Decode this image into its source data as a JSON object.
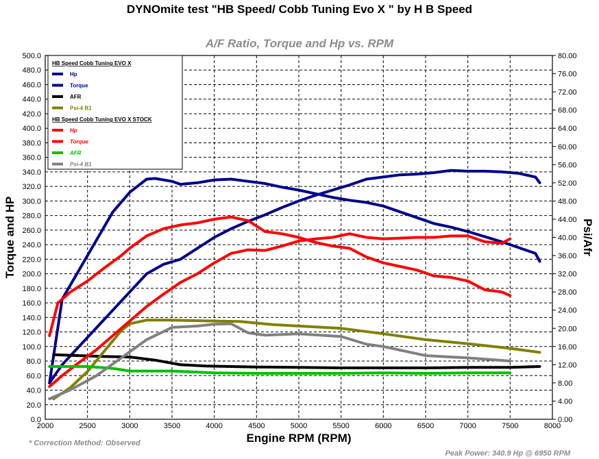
{
  "header": {
    "title": "DYNOmite test \"HB Speed/ Cobb Tuning Evo X \" by H B Speed",
    "subtitle": "A/F Ratio, Torque and Hp vs. RPM"
  },
  "footer": {
    "correction": "* Correction Method: Observed",
    "peak": "Peak Power: 340.9 Hp @ 6950 RPM"
  },
  "chart_data": {
    "type": "line",
    "title": "A/F Ratio, Torque and Hp vs. RPM",
    "xlabel": "Engine RPM (RPM)",
    "ylabel": "Torque and HP",
    "y2label": "Psi/Afr",
    "xlim": [
      2000,
      8000
    ],
    "ylim": [
      0,
      500
    ],
    "y2lim": [
      0,
      80
    ],
    "grid": true,
    "legend_position": "top-left",
    "x_ticks": [
      "2000",
      "2500",
      "3000",
      "3500",
      "4000",
      "4500",
      "5000",
      "5500",
      "6000",
      "6500",
      "7000",
      "7500",
      "8000"
    ],
    "y_ticks": [
      "0.0",
      "20.0",
      "40.0",
      "60.0",
      "80.0",
      "100.0",
      "120.0",
      "140.0",
      "160.0",
      "180.0",
      "200.0",
      "220.0",
      "240.0",
      "260.0",
      "280.0",
      "300.0",
      "320.0",
      "340.0",
      "360.0",
      "380.0",
      "400.0",
      "420.0",
      "440.0",
      "460.0",
      "480.0",
      "500.0"
    ],
    "y2_ticks": [
      "0.00",
      "4.00",
      "8.00",
      "12.00",
      "16.00",
      "20.00",
      "24.00",
      "28.00",
      "32.00",
      "36.00",
      "40.00",
      "44.00",
      "48.00",
      "52.00",
      "56.00",
      "60.00",
      "64.00",
      "68.00",
      "72.00",
      "76.00",
      "80.00"
    ],
    "legend_groups": [
      {
        "name": "HB Speed  Cobb Tuning EVO X",
        "items": [
          "Hp",
          "Torque",
          "AFR",
          "Psi-4 B1"
        ]
      },
      {
        "name": "HB Speed  Cobb Tuning EVO X STOCK",
        "items": [
          "Hp",
          "Torque",
          "AFR",
          "Psi-4 B1"
        ]
      }
    ],
    "series": [
      {
        "name": "Hp",
        "group": "HB Speed  Cobb Tuning EVO X",
        "axis": "left",
        "color": "#00008b",
        "width": 4,
        "x": [
          2050,
          2200,
          2400,
          2600,
          2800,
          3000,
          3200,
          3400,
          3600,
          3800,
          4000,
          4200,
          4400,
          4600,
          4800,
          5000,
          5200,
          5400,
          5600,
          5800,
          6000,
          6200,
          6400,
          6600,
          6800,
          7000,
          7200,
          7400,
          7600,
          7800,
          7850
        ],
        "y": [
          50,
          75,
          100,
          125,
          150,
          175,
          200,
          213,
          220,
          235,
          250,
          262,
          272,
          281,
          291,
          300,
          308,
          315,
          322,
          330,
          333,
          336,
          337,
          339,
          342,
          341,
          341,
          340,
          338,
          333,
          325
        ]
      },
      {
        "name": "Torque",
        "group": "HB Speed  Cobb Tuning EVO X",
        "axis": "left",
        "color": "#00008b",
        "width": 4,
        "x": [
          2050,
          2200,
          2400,
          2600,
          2800,
          3000,
          3200,
          3300,
          3500,
          3600,
          3800,
          4000,
          4200,
          4400,
          4600,
          4800,
          5000,
          5200,
          5400,
          5600,
          5800,
          6000,
          6200,
          6400,
          6600,
          6800,
          7000,
          7200,
          7400,
          7600,
          7800,
          7850
        ],
        "y": [
          50,
          165,
          205,
          245,
          285,
          312,
          330,
          331,
          327,
          323,
          325,
          329,
          330,
          327,
          324,
          319,
          315,
          310,
          305,
          301,
          298,
          293,
          285,
          277,
          269,
          264,
          258,
          251,
          244,
          236,
          228,
          217
        ]
      },
      {
        "name": "AFR",
        "group": "HB Speed  Cobb Tuning EVO X",
        "axis": "right",
        "color": "#000000",
        "width": 4,
        "x": [
          2100,
          2400,
          2700,
          3000,
          3300,
          3600,
          3900,
          4200,
          4500,
          5000,
          5500,
          6000,
          6500,
          7000,
          7500,
          7850
        ],
        "y": [
          14.2,
          14.0,
          13.8,
          13.7,
          13.0,
          12.0,
          11.7,
          11.6,
          11.5,
          11.4,
          11.3,
          11.3,
          11.3,
          11.4,
          11.4,
          11.6
        ]
      },
      {
        "name": "Psi-4 B1",
        "group": "HB Speed  Cobb Tuning EVO X",
        "axis": "right",
        "color": "#808000",
        "width": 4,
        "x": [
          2100,
          2300,
          2500,
          2700,
          2900,
          3000,
          3200,
          3500,
          4000,
          4300,
          4700,
          5000,
          5500,
          6000,
          6500,
          7000,
          7500,
          7850
        ],
        "y": [
          4.5,
          7.0,
          10.5,
          15.0,
          19.5,
          21.0,
          21.8,
          21.8,
          21.6,
          21.5,
          20.8,
          20.5,
          20.0,
          18.8,
          17.5,
          16.6,
          15.6,
          14.7
        ]
      },
      {
        "name": "Hp",
        "group": "HB Speed  Cobb Tuning EVO X STOCK",
        "axis": "left",
        "color": "#ff0000",
        "width": 4,
        "x": [
          2050,
          2200,
          2400,
          2600,
          2800,
          3000,
          3200,
          3400,
          3600,
          3800,
          4000,
          4200,
          4400,
          4600,
          4800,
          5000,
          5200,
          5400,
          5600,
          5800,
          6000,
          6200,
          6400,
          6600,
          6800,
          7000,
          7200,
          7400,
          7500
        ],
        "y": [
          45,
          60,
          78,
          95,
          115,
          135,
          155,
          172,
          188,
          200,
          215,
          228,
          233,
          232,
          238,
          245,
          248,
          250,
          255,
          250,
          248,
          249,
          250,
          250,
          252,
          252,
          244,
          242,
          248
        ]
      },
      {
        "name": "Torque",
        "group": "HB Speed  Cobb Tuning EVO X STOCK",
        "axis": "left",
        "color": "#ff0000",
        "width": 4,
        "x": [
          2050,
          2150,
          2300,
          2500,
          2700,
          2900,
          3000,
          3200,
          3400,
          3600,
          3800,
          4000,
          4200,
          4400,
          4600,
          4800,
          5000,
          5200,
          5400,
          5600,
          5800,
          6000,
          6200,
          6400,
          6600,
          6800,
          7000,
          7200,
          7400,
          7500
        ],
        "y": [
          115,
          160,
          175,
          190,
          208,
          225,
          235,
          252,
          262,
          267,
          270,
          275,
          278,
          273,
          258,
          255,
          250,
          243,
          238,
          235,
          223,
          215,
          210,
          205,
          197,
          195,
          190,
          178,
          175,
          170
        ]
      },
      {
        "name": "AFR",
        "group": "HB Speed  Cobb Tuning EVO X STOCK",
        "axis": "right",
        "color": "#00c000",
        "width": 4,
        "x": [
          2050,
          2500,
          2800,
          3000,
          3500,
          4000,
          4500,
          5000,
          5500,
          6000,
          6500,
          7000,
          7500
        ],
        "y": [
          11.6,
          11.6,
          11.2,
          10.6,
          10.6,
          10.2,
          10.1,
          10.1,
          10.1,
          10.2,
          10.1,
          10.2,
          10.2
        ]
      },
      {
        "name": "Psi-4 B1",
        "group": "HB Speed  Cobb Tuning EVO X STOCK",
        "axis": "right",
        "color": "#808080",
        "width": 4,
        "x": [
          2050,
          2300,
          2600,
          2900,
          3200,
          3500,
          3800,
          4000,
          4200,
          4400,
          4600,
          5000,
          5500,
          5800,
          6000,
          6500,
          7000,
          7500
        ],
        "y": [
          4.5,
          6.5,
          9.5,
          13.5,
          17.5,
          20.2,
          20.5,
          20.9,
          21.0,
          19.0,
          18.5,
          18.8,
          18.2,
          16.5,
          16.0,
          14.0,
          13.5,
          12.8
        ]
      }
    ]
  }
}
